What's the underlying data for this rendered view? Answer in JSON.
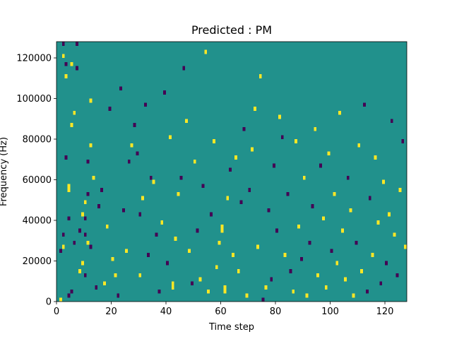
{
  "chart_data": {
    "type": "heatmap",
    "title": "Predicted : PM",
    "xlabel": "Time step",
    "ylabel": "Frequency (Hz)",
    "xlim": [
      0,
      128
    ],
    "ylim": [
      0,
      128000
    ],
    "xticks": [
      0,
      20,
      40,
      60,
      80,
      100,
      120
    ],
    "yticks": [
      0,
      20000,
      40000,
      60000,
      80000,
      100000,
      120000
    ],
    "n_time_steps": 128,
    "n_freq_bins": 64,
    "freq_bin_hz": 2000,
    "levels": [
      -1,
      0,
      1
    ],
    "colors": {
      "-1": "#440154",
      "0": "#21918c",
      "1": "#fde725"
    },
    "background_level": 0,
    "cells": [
      [
        1,
        0,
        1
      ],
      [
        1,
        12,
        -1
      ],
      [
        2,
        13,
        1
      ],
      [
        2,
        60,
        1
      ],
      [
        2,
        63,
        -1
      ],
      [
        2,
        16,
        -1
      ],
      [
        3,
        58,
        -1
      ],
      [
        3,
        55,
        1
      ],
      [
        3,
        35,
        -1
      ],
      [
        4,
        28,
        1
      ],
      [
        4,
        27,
        1
      ],
      [
        4,
        1,
        -1
      ],
      [
        4,
        20,
        -1
      ],
      [
        5,
        2,
        -1
      ],
      [
        5,
        43,
        1
      ],
      [
        5,
        58,
        1
      ],
      [
        6,
        14,
        -1
      ],
      [
        6,
        46,
        1
      ],
      [
        7,
        57,
        -1
      ],
      [
        7,
        63,
        -1
      ],
      [
        8,
        17,
        -1
      ],
      [
        8,
        7,
        1
      ],
      [
        9,
        9,
        1
      ],
      [
        9,
        21,
        1
      ],
      [
        10,
        24,
        1
      ],
      [
        10,
        20,
        -1
      ],
      [
        10,
        16,
        -1
      ],
      [
        10,
        6,
        -1
      ],
      [
        11,
        14,
        1
      ],
      [
        11,
        26,
        -1
      ],
      [
        11,
        34,
        -1
      ],
      [
        12,
        13,
        -1
      ],
      [
        12,
        38,
        1
      ],
      [
        12,
        49,
        1
      ],
      [
        13,
        30,
        1
      ],
      [
        14,
        3,
        -1
      ],
      [
        15,
        23,
        -1
      ],
      [
        16,
        27,
        -1
      ],
      [
        17,
        4,
        1
      ],
      [
        18,
        18,
        1
      ],
      [
        19,
        47,
        -1
      ],
      [
        20,
        10,
        1
      ],
      [
        21,
        6,
        1
      ],
      [
        22,
        1,
        -1
      ],
      [
        23,
        52,
        -1
      ],
      [
        24,
        22,
        -1
      ],
      [
        25,
        12,
        1
      ],
      [
        26,
        34,
        -1
      ],
      [
        27,
        38,
        1
      ],
      [
        28,
        43,
        -1
      ],
      [
        29,
        36,
        -1
      ],
      [
        30,
        6,
        1
      ],
      [
        30,
        21,
        -1
      ],
      [
        31,
        25,
        1
      ],
      [
        32,
        48,
        -1
      ],
      [
        33,
        11,
        -1
      ],
      [
        34,
        30,
        -1
      ],
      [
        35,
        29,
        1
      ],
      [
        36,
        16,
        -1
      ],
      [
        37,
        2,
        -1
      ],
      [
        38,
        19,
        1
      ],
      [
        39,
        51,
        -1
      ],
      [
        40,
        9,
        -1
      ],
      [
        41,
        40,
        1
      ],
      [
        42,
        4,
        1
      ],
      [
        42,
        3,
        1
      ],
      [
        43,
        15,
        1
      ],
      [
        44,
        26,
        1
      ],
      [
        45,
        30,
        -1
      ],
      [
        46,
        57,
        -1
      ],
      [
        47,
        44,
        1
      ],
      [
        48,
        12,
        1
      ],
      [
        49,
        4,
        -1
      ],
      [
        50,
        34,
        1
      ],
      [
        51,
        17,
        -1
      ],
      [
        52,
        5,
        1
      ],
      [
        53,
        28,
        -1
      ],
      [
        54,
        61,
        1
      ],
      [
        55,
        2,
        1
      ],
      [
        56,
        21,
        -1
      ],
      [
        57,
        39,
        1
      ],
      [
        58,
        8,
        1
      ],
      [
        59,
        14,
        1
      ],
      [
        60,
        17,
        1
      ],
      [
        60,
        18,
        1
      ],
      [
        61,
        3,
        1
      ],
      [
        61,
        2,
        1
      ],
      [
        62,
        25,
        1
      ],
      [
        63,
        32,
        -1
      ],
      [
        64,
        11,
        1
      ],
      [
        65,
        35,
        1
      ],
      [
        66,
        7,
        1
      ],
      [
        67,
        24,
        -1
      ],
      [
        68,
        42,
        -1
      ],
      [
        69,
        1,
        1
      ],
      [
        70,
        27,
        -1
      ],
      [
        71,
        37,
        1
      ],
      [
        72,
        47,
        1
      ],
      [
        73,
        13,
        1
      ],
      [
        74,
        55,
        1
      ],
      [
        75,
        0,
        -1
      ],
      [
        76,
        3,
        1
      ],
      [
        77,
        22,
        -1
      ],
      [
        78,
        5,
        -1
      ],
      [
        79,
        33,
        -1
      ],
      [
        80,
        17,
        -1
      ],
      [
        81,
        45,
        1
      ],
      [
        82,
        40,
        -1
      ],
      [
        83,
        11,
        1
      ],
      [
        84,
        26,
        -1
      ],
      [
        85,
        7,
        -1
      ],
      [
        86,
        2,
        1
      ],
      [
        87,
        39,
        1
      ],
      [
        88,
        18,
        1
      ],
      [
        89,
        10,
        -1
      ],
      [
        90,
        30,
        1
      ],
      [
        91,
        1,
        1
      ],
      [
        92,
        14,
        -1
      ],
      [
        93,
        23,
        -1
      ],
      [
        94,
        42,
        1
      ],
      [
        95,
        6,
        1
      ],
      [
        96,
        33,
        -1
      ],
      [
        97,
        20,
        1
      ],
      [
        98,
        3,
        1
      ],
      [
        99,
        36,
        1
      ],
      [
        100,
        12,
        -1
      ],
      [
        101,
        26,
        1
      ],
      [
        102,
        9,
        1
      ],
      [
        103,
        46,
        1
      ],
      [
        104,
        17,
        1
      ],
      [
        105,
        5,
        1
      ],
      [
        106,
        30,
        -1
      ],
      [
        107,
        22,
        1
      ],
      [
        108,
        1,
        1
      ],
      [
        109,
        14,
        -1
      ],
      [
        110,
        38,
        1
      ],
      [
        111,
        7,
        1
      ],
      [
        112,
        48,
        -1
      ],
      [
        113,
        2,
        -1
      ],
      [
        114,
        25,
        -1
      ],
      [
        115,
        11,
        1
      ],
      [
        116,
        35,
        1
      ],
      [
        117,
        19,
        1
      ],
      [
        118,
        4,
        -1
      ],
      [
        119,
        29,
        1
      ],
      [
        120,
        9,
        -1
      ],
      [
        121,
        21,
        1
      ],
      [
        122,
        44,
        -1
      ],
      [
        123,
        16,
        1
      ],
      [
        124,
        6,
        -1
      ],
      [
        125,
        27,
        1
      ],
      [
        126,
        39,
        -1
      ],
      [
        127,
        13,
        1
      ]
    ]
  }
}
